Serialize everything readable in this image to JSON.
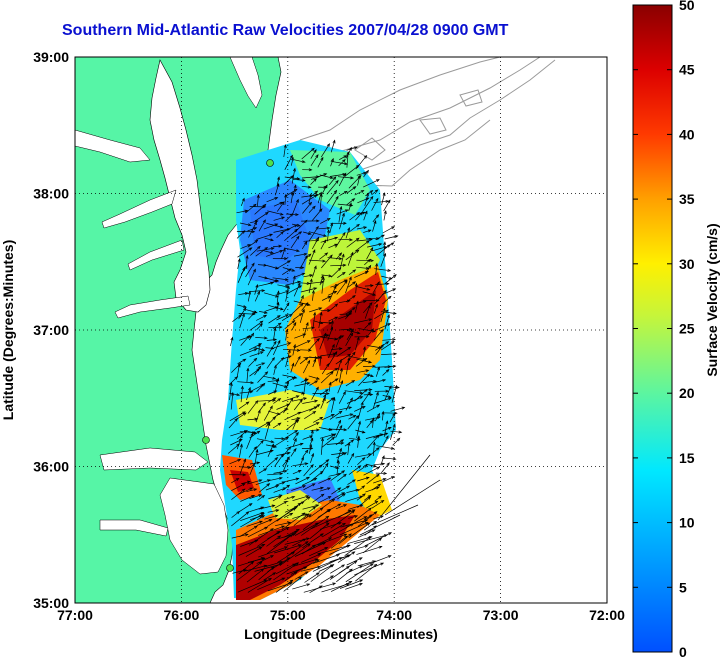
{
  "title": "Southern Mid-Atlantic Raw Velocities 2007/04/28 0900 GMT",
  "x_axis": {
    "label": "Longitude (Degrees:Minutes)",
    "ticks": [
      "77:00",
      "76:00",
      "75:00",
      "74:00",
      "73:00",
      "72:00"
    ]
  },
  "y_axis": {
    "label": "Latitude (Degrees:Minutes)",
    "ticks": [
      "39:00",
      "38:00",
      "37:00",
      "36:00",
      "35:00"
    ]
  },
  "colorbar": {
    "label": "Surface Velocity (cm/s)",
    "ticks": [
      "50",
      "45",
      "40",
      "35",
      "30",
      "25",
      "20",
      "15",
      "10",
      "5",
      "0"
    ],
    "min": 0,
    "max": 50
  },
  "colors": {
    "land": "#56f5a6",
    "water": "#ffffff",
    "title": "#0a10d0",
    "grid": "#000000",
    "bathymetry": "#9a9a9a",
    "stations": "#4ee04e"
  },
  "map_extent": {
    "lon": [
      -77,
      -72
    ],
    "lat": [
      35,
      39
    ]
  }
}
